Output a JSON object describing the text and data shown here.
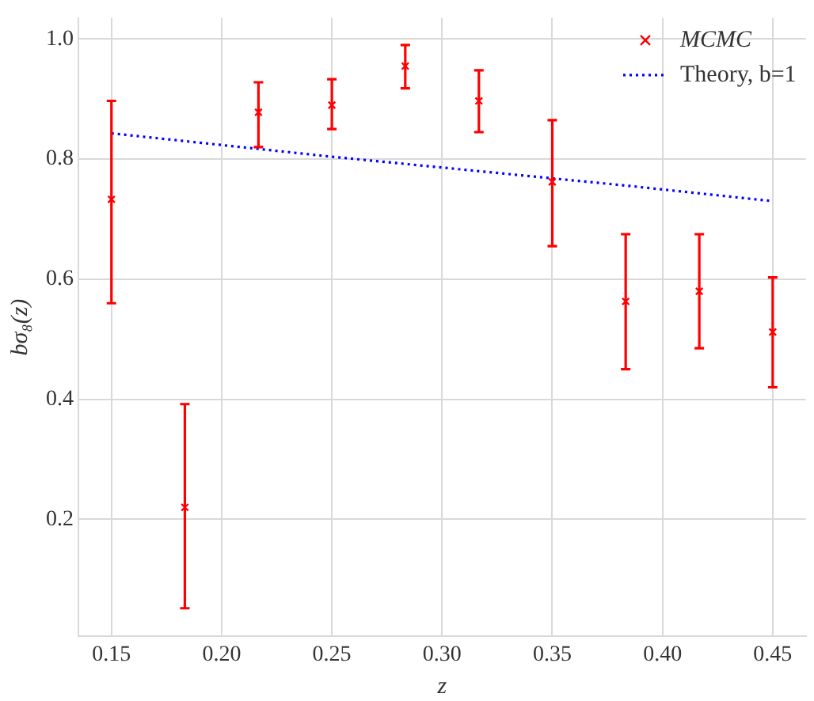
{
  "chart_data": {
    "type": "scatter",
    "xlabel": "z",
    "ylabel": "bσ₈(z)",
    "xlim": [
      0.135,
      0.465
    ],
    "xticks": [
      {
        "value": 0.15,
        "label": "0.15"
      },
      {
        "value": 0.2,
        "label": "0.20"
      },
      {
        "value": 0.25,
        "label": "0.25"
      },
      {
        "value": 0.3,
        "label": "0.30"
      },
      {
        "value": 0.35,
        "label": "0.35"
      },
      {
        "value": 0.4,
        "label": "0.40"
      },
      {
        "value": 0.45,
        "label": "0.45"
      }
    ],
    "ylim": [
      0.005,
      1.035
    ],
    "yticks": [
      {
        "value": 0.2,
        "label": "0.2"
      },
      {
        "value": 0.4,
        "label": "0.4"
      },
      {
        "value": 0.6,
        "label": "0.6"
      },
      {
        "value": 0.8,
        "label": "0.8"
      },
      {
        "value": 1.0,
        "label": "1.0"
      }
    ],
    "grid": true,
    "legend": "top right",
    "series": [
      {
        "name": "MCMC",
        "color": "#ff0000",
        "marker": "cross",
        "x": [
          0.15,
          0.1833,
          0.2167,
          0.25,
          0.2833,
          0.3167,
          0.35,
          0.3833,
          0.4167,
          0.45
        ],
        "values": [
          0.733,
          0.22,
          0.878,
          0.89,
          0.955,
          0.897,
          0.762,
          0.563,
          0.58,
          0.512
        ],
        "errors": [
          [
            0.56,
            0.897
          ],
          [
            0.052,
            0.392
          ],
          [
            0.82,
            0.928
          ],
          [
            0.85,
            0.933
          ],
          [
            0.918,
            0.99
          ],
          [
            0.845,
            0.948
          ],
          [
            0.655,
            0.865
          ],
          [
            0.45,
            0.675
          ],
          [
            0.485,
            0.675
          ],
          [
            0.42,
            0.603
          ]
        ]
      },
      {
        "name": "Theory, b=1",
        "type": "line",
        "color": "#0000ff",
        "line_style": "dotted",
        "marker": "none",
        "x": [
          0.15,
          0.1833,
          0.2167,
          0.25,
          0.2833,
          0.3167,
          0.35,
          0.3833,
          0.4167,
          0.45
        ],
        "values": [
          0.843,
          0.83,
          0.817,
          0.804,
          0.792,
          0.78,
          0.768,
          0.756,
          0.743,
          0.73
        ]
      }
    ]
  }
}
